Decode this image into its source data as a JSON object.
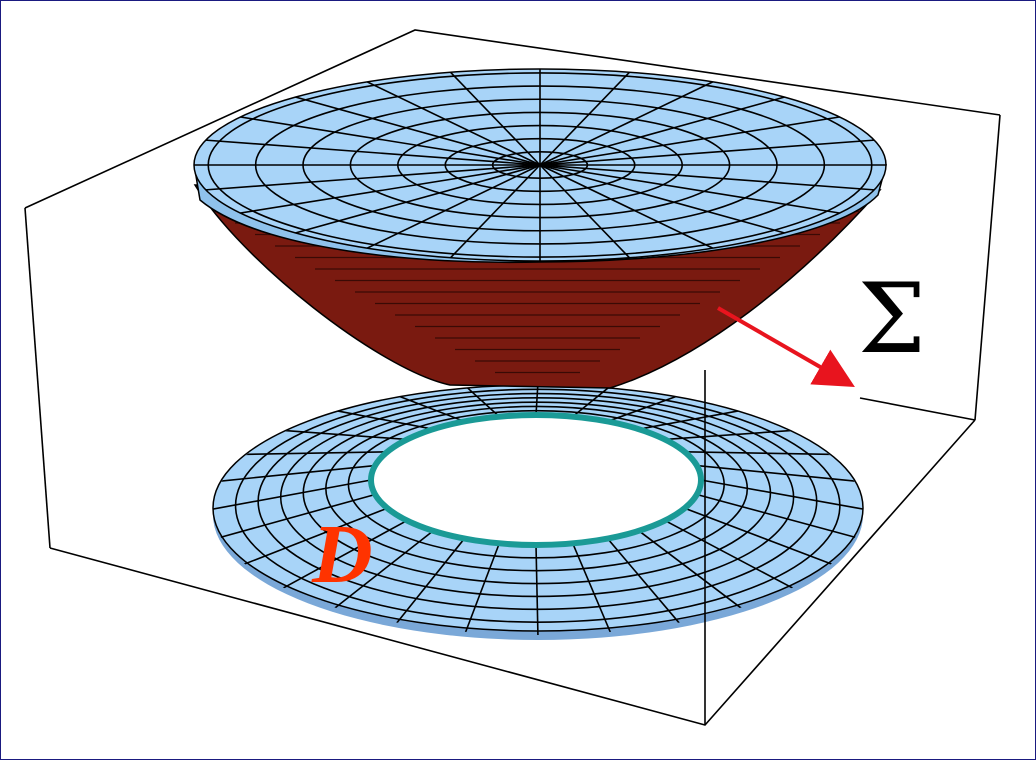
{
  "labels": {
    "surface": "Σ",
    "region": "D"
  }
}
